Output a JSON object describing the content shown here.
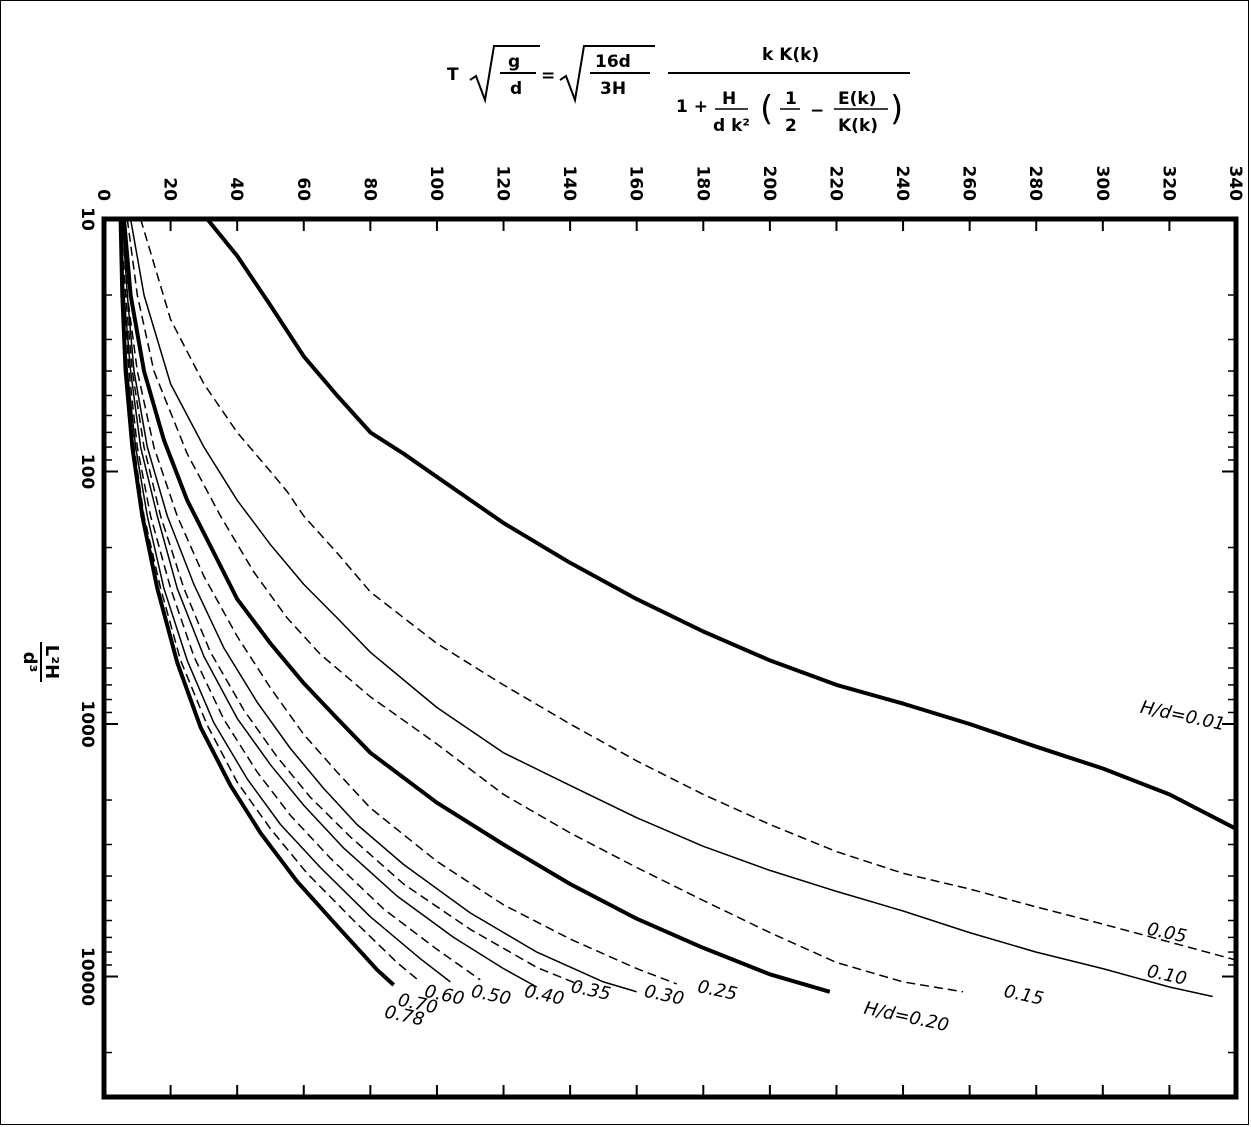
{
  "chart_data": {
    "type": "line",
    "title": "",
    "formula": {
      "lhs": "T",
      "lhs_sqrt_num": "g",
      "lhs_sqrt_den": "d",
      "eq": "=",
      "rhs_sqrt_num": "16d",
      "rhs_sqrt_den": "3H",
      "frac_num": "k  K(k)",
      "den_one_plus": "1 +",
      "den_h": "H",
      "den_dk2": "d k²",
      "half_num": "1",
      "half_den": "2",
      "minus": "−",
      "ek": "E(k)",
      "kk": "K(k)"
    },
    "xlabel": "",
    "ylabel_num": "L²H",
    "ylabel_den": "d³",
    "x_ticks": [
      "0",
      "20",
      "40",
      "60",
      "80",
      "100",
      "120",
      "140",
      "160",
      "180",
      "200",
      "220",
      "240",
      "260",
      "280",
      "300",
      "320",
      "340"
    ],
    "y_ticks": [
      "10",
      "100",
      "1000",
      "10000"
    ],
    "xlim": [
      0,
      340
    ],
    "ylim": [
      10,
      30000
    ],
    "y_scale": "log",
    "x_axis_position": "top",
    "grid": false,
    "series": [
      {
        "name": "H/d=0.01",
        "style": "thick",
        "label_x": 311,
        "label_y": 900,
        "points": [
          [
            31,
            10
          ],
          [
            40,
            14
          ],
          [
            50,
            22
          ],
          [
            60,
            35
          ],
          [
            70,
            50
          ],
          [
            80,
            70
          ],
          [
            90,
            85
          ],
          [
            100,
            105
          ],
          [
            120,
            160
          ],
          [
            140,
            230
          ],
          [
            160,
            320
          ],
          [
            180,
            430
          ],
          [
            200,
            560
          ],
          [
            220,
            700
          ],
          [
            240,
            830
          ],
          [
            260,
            1000
          ],
          [
            280,
            1230
          ],
          [
            300,
            1500
          ],
          [
            320,
            1900
          ],
          [
            340,
            2600
          ]
        ]
      },
      {
        "name": "0.05",
        "style": "dashed",
        "label_x": 313,
        "label_y": 6800,
        "points": [
          [
            11,
            10
          ],
          [
            15,
            15
          ],
          [
            20,
            25
          ],
          [
            30,
            45
          ],
          [
            40,
            70
          ],
          [
            50,
            100
          ],
          [
            55,
            120
          ],
          [
            60,
            150
          ],
          [
            70,
            210
          ],
          [
            80,
            300
          ],
          [
            100,
            480
          ],
          [
            120,
            700
          ],
          [
            140,
            1000
          ],
          [
            160,
            1400
          ],
          [
            180,
            1900
          ],
          [
            200,
            2500
          ],
          [
            220,
            3200
          ],
          [
            240,
            3900
          ],
          [
            260,
            4500
          ],
          [
            280,
            5300
          ],
          [
            300,
            6200
          ],
          [
            320,
            7300
          ],
          [
            340,
            8600
          ]
        ]
      },
      {
        "name": "0.10",
        "style": "thin",
        "label_x": 313,
        "label_y": 10000,
        "points": [
          [
            8,
            10
          ],
          [
            12,
            20
          ],
          [
            20,
            45
          ],
          [
            30,
            80
          ],
          [
            40,
            130
          ],
          [
            50,
            195
          ],
          [
            60,
            280
          ],
          [
            70,
            380
          ],
          [
            80,
            520
          ],
          [
            100,
            860
          ],
          [
            120,
            1300
          ],
          [
            140,
            1750
          ],
          [
            160,
            2350
          ],
          [
            180,
            3050
          ],
          [
            200,
            3800
          ],
          [
            220,
            4600
          ],
          [
            240,
            5500
          ],
          [
            260,
            6700
          ],
          [
            280,
            8000
          ],
          [
            300,
            9300
          ],
          [
            320,
            11000
          ],
          [
            333,
            12000
          ]
        ]
      },
      {
        "name": "0.15",
        "style": "dashed",
        "label_x": 270,
        "label_y": 12000,
        "points": [
          [
            7,
            10
          ],
          [
            10,
            20
          ],
          [
            15,
            40
          ],
          [
            25,
            85
          ],
          [
            35,
            150
          ],
          [
            45,
            250
          ],
          [
            55,
            380
          ],
          [
            65,
            530
          ],
          [
            80,
            780
          ],
          [
            100,
            1200
          ],
          [
            120,
            1900
          ],
          [
            140,
            2700
          ],
          [
            160,
            3700
          ],
          [
            180,
            5000
          ],
          [
            200,
            6700
          ],
          [
            220,
            8800
          ],
          [
            240,
            10500
          ],
          [
            258,
            11500
          ]
        ]
      },
      {
        "name": "H/d=0.20",
        "style": "thick",
        "label_x": 228,
        "label_y": 14000,
        "points": [
          [
            6,
            10
          ],
          [
            8,
            20
          ],
          [
            12,
            40
          ],
          [
            18,
            75
          ],
          [
            25,
            130
          ],
          [
            33,
            210
          ],
          [
            40,
            320
          ],
          [
            50,
            480
          ],
          [
            60,
            690
          ],
          [
            70,
            950
          ],
          [
            80,
            1300
          ],
          [
            100,
            2050
          ],
          [
            120,
            3000
          ],
          [
            140,
            4300
          ],
          [
            160,
            5900
          ],
          [
            180,
            7700
          ],
          [
            200,
            9800
          ],
          [
            218,
            11500
          ]
        ]
      },
      {
        "name": "0.25",
        "style": "dashed",
        "label_x": 178,
        "label_y": 11500,
        "points": [
          [
            6,
            10
          ],
          [
            7,
            20
          ],
          [
            10,
            40
          ],
          [
            15,
            80
          ],
          [
            22,
            150
          ],
          [
            30,
            260
          ],
          [
            40,
            450
          ],
          [
            50,
            720
          ],
          [
            60,
            1100
          ],
          [
            70,
            1550
          ],
          [
            80,
            2150
          ],
          [
            100,
            3500
          ],
          [
            120,
            5200
          ],
          [
            140,
            7100
          ],
          [
            160,
            9300
          ],
          [
            172,
            10700
          ]
        ]
      },
      {
        "name": "0.30",
        "style": "thin",
        "label_x": 162,
        "label_y": 12000,
        "points": [
          [
            5.5,
            10
          ],
          [
            7,
            20
          ],
          [
            9,
            40
          ],
          [
            13,
            80
          ],
          [
            19,
            150
          ],
          [
            27,
            280
          ],
          [
            36,
            500
          ],
          [
            46,
            820
          ],
          [
            56,
            1250
          ],
          [
            66,
            1800
          ],
          [
            76,
            2500
          ],
          [
            90,
            3600
          ],
          [
            110,
            5600
          ],
          [
            130,
            8000
          ],
          [
            150,
            10500
          ],
          [
            160,
            11500
          ]
        ]
      },
      {
        "name": "0.35",
        "style": "dashed",
        "label_x": 140,
        "label_y": 11500,
        "points": [
          [
            5,
            10
          ],
          [
            6.5,
            20
          ],
          [
            8.5,
            40
          ],
          [
            12,
            80
          ],
          [
            17,
            150
          ],
          [
            24,
            290
          ],
          [
            32,
            520
          ],
          [
            42,
            880
          ],
          [
            52,
            1350
          ],
          [
            62,
            1950
          ],
          [
            74,
            2800
          ],
          [
            90,
            4300
          ],
          [
            110,
            6500
          ],
          [
            130,
            9200
          ],
          [
            143,
            10800
          ]
        ]
      },
      {
        "name": "0.40",
        "style": "thin",
        "label_x": 126,
        "label_y": 12000,
        "points": [
          [
            5,
            10
          ],
          [
            6,
            20
          ],
          [
            8,
            40
          ],
          [
            11,
            80
          ],
          [
            16,
            150
          ],
          [
            22,
            290
          ],
          [
            30,
            540
          ],
          [
            40,
            950
          ],
          [
            50,
            1450
          ],
          [
            60,
            2100
          ],
          [
            72,
            3100
          ],
          [
            88,
            4800
          ],
          [
            105,
            7000
          ],
          [
            120,
            9300
          ],
          [
            130,
            11000
          ]
        ]
      },
      {
        "name": "0.50",
        "style": "dashed",
        "label_x": 110,
        "label_y": 12000,
        "points": [
          [
            5,
            10
          ],
          [
            6,
            20
          ],
          [
            7.5,
            40
          ],
          [
            10,
            80
          ],
          [
            14,
            150
          ],
          [
            20,
            290
          ],
          [
            27,
            540
          ],
          [
            36,
            960
          ],
          [
            46,
            1550
          ],
          [
            56,
            2300
          ],
          [
            68,
            3400
          ],
          [
            84,
            5400
          ],
          [
            100,
            7800
          ],
          [
            113,
            10300
          ]
        ]
      },
      {
        "name": "0.60",
        "style": "thin",
        "label_x": 96,
        "label_y": 12000,
        "points": [
          [
            5,
            10
          ],
          [
            5.5,
            20
          ],
          [
            7,
            40
          ],
          [
            9.5,
            80
          ],
          [
            13,
            150
          ],
          [
            18,
            290
          ],
          [
            25,
            560
          ],
          [
            33,
            990
          ],
          [
            43,
            1650
          ],
          [
            53,
            2500
          ],
          [
            65,
            3700
          ],
          [
            80,
            5800
          ],
          [
            95,
            8500
          ],
          [
            104,
            10500
          ]
        ]
      },
      {
        "name": "0.70",
        "style": "dashed",
        "label_x": 88,
        "label_y": 13000,
        "points": [
          [
            5,
            10
          ],
          [
            5.5,
            20
          ],
          [
            6.5,
            40
          ],
          [
            9,
            80
          ],
          [
            12,
            150
          ],
          [
            17,
            290
          ],
          [
            23,
            560
          ],
          [
            31,
            1010
          ],
          [
            40,
            1700
          ],
          [
            50,
            2600
          ],
          [
            61,
            3900
          ],
          [
            75,
            6000
          ],
          [
            88,
            8800
          ],
          [
            95,
            10500
          ]
        ]
      },
      {
        "name": "0.78",
        "style": "thick",
        "label_x": 84,
        "label_y": 14500,
        "points": [
          [
            5,
            10
          ],
          [
            5.5,
            20
          ],
          [
            6.5,
            40
          ],
          [
            8.5,
            80
          ],
          [
            11.5,
            150
          ],
          [
            16,
            290
          ],
          [
            22,
            570
          ],
          [
            29,
            1030
          ],
          [
            38,
            1750
          ],
          [
            47,
            2700
          ],
          [
            58,
            4200
          ],
          [
            70,
            6300
          ],
          [
            82,
            9400
          ],
          [
            87,
            10800
          ]
        ]
      }
    ]
  }
}
